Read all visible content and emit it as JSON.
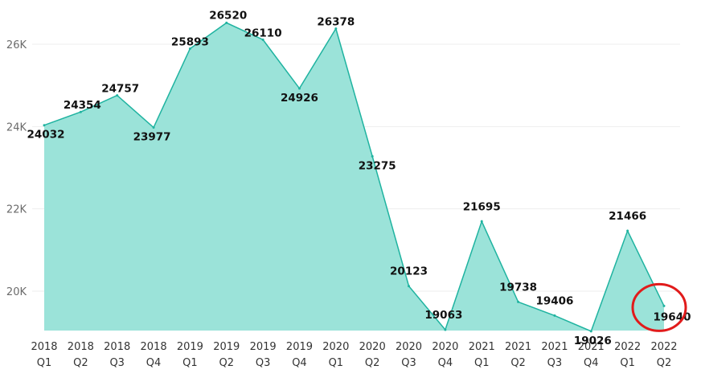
{
  "chart_data": {
    "type": "area",
    "title": "",
    "xlabel": "",
    "ylabel": "",
    "ylim": [
      19000,
      26800
    ],
    "y_ticks": [
      20000,
      22000,
      24000,
      26000
    ],
    "y_tick_labels": [
      "20K",
      "22K",
      "24K",
      "26K"
    ],
    "grid": "horizontal",
    "legend": "none",
    "categories": [
      [
        "2018",
        "Q1"
      ],
      [
        "2018",
        "Q2"
      ],
      [
        "2018",
        "Q3"
      ],
      [
        "2018",
        "Q4"
      ],
      [
        "2019",
        "Q1"
      ],
      [
        "2019",
        "Q2"
      ],
      [
        "2019",
        "Q3"
      ],
      [
        "2019",
        "Q4"
      ],
      [
        "2020",
        "Q1"
      ],
      [
        "2020",
        "Q2"
      ],
      [
        "2020",
        "Q3"
      ],
      [
        "2020",
        "Q4"
      ],
      [
        "2021",
        "Q1"
      ],
      [
        "2021",
        "Q2"
      ],
      [
        "2021",
        "Q3"
      ],
      [
        "2021",
        "Q4"
      ],
      [
        "2022",
        "Q1"
      ],
      [
        "2022",
        "Q2"
      ]
    ],
    "values": [
      24032,
      24354,
      24757,
      23977,
      25893,
      26520,
      26110,
      24926,
      26378,
      23275,
      20123,
      19063,
      21695,
      19738,
      19406,
      19026,
      21466,
      19640
    ],
    "data_labels": [
      "24032",
      "24354",
      "24757",
      "23977",
      "25893",
      "26520",
      "26110",
      "24926",
      "26378",
      "23275",
      "20123",
      "19063",
      "21695",
      "19738",
      "19406",
      "19026",
      "21466",
      "19640"
    ],
    "colors": {
      "area_fill": "#9be3d9",
      "area_line": "#1fb3a0",
      "highlight": "#e11b1b"
    },
    "annotations": [
      {
        "type": "circle",
        "target_category_index": 17,
        "color": "#e11b1b"
      }
    ]
  }
}
